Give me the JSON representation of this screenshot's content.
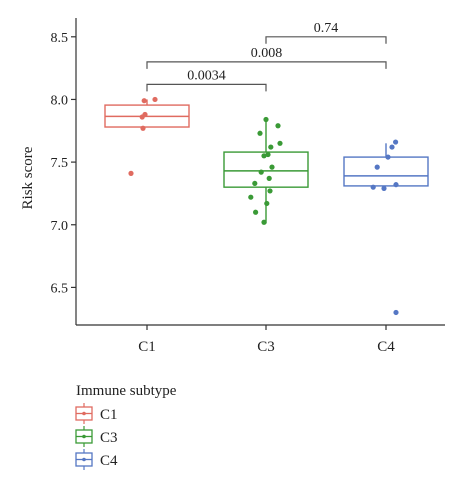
{
  "chart_data": {
    "type": "box",
    "title": "",
    "xlabel": "",
    "ylabel": "Risk score",
    "categories": [
      "C1",
      "C3",
      "C4"
    ],
    "ylim": [
      6.2,
      8.65
    ],
    "yticks": [
      "6.5",
      "7.0",
      "7.5",
      "8.0",
      "8.5"
    ],
    "grid": false,
    "legend": {
      "title": "Immune subtype",
      "placement": "bottom-left",
      "entries": [
        "C1",
        "C3",
        "C4"
      ]
    },
    "colors": {
      "C1": "#e06b60",
      "C3": "#3a9a36",
      "C4": "#5577c4",
      "bracket": "#555555",
      "axis": "#333333"
    },
    "series": [
      {
        "name": "C1",
        "box": {
          "whisker_low": 7.78,
          "q1": 7.78,
          "median": 7.865,
          "q3": 7.955,
          "whisker_high": 8.0
        },
        "points": [
          8.0,
          7.99,
          7.88,
          7.86,
          7.77,
          7.41
        ],
        "jitter": [
          0.2,
          -0.07,
          -0.05,
          -0.12,
          -0.1,
          -0.4
        ]
      },
      {
        "name": "C3",
        "box": {
          "whisker_low": 7.01,
          "q1": 7.3,
          "median": 7.43,
          "q3": 7.58,
          "whisker_high": 7.84
        },
        "points": [
          7.84,
          7.79,
          7.73,
          7.65,
          7.62,
          7.56,
          7.55,
          7.46,
          7.42,
          7.37,
          7.33,
          7.27,
          7.22,
          7.17,
          7.1,
          7.02
        ],
        "jitter": [
          0,
          0.3,
          -0.15,
          0.35,
          0.12,
          0.05,
          -0.05,
          0.15,
          -0.12,
          0.08,
          -0.28,
          0.1,
          -0.38,
          0.02,
          -0.26,
          -0.05
        ]
      },
      {
        "name": "C4",
        "box": {
          "whisker_low": 7.31,
          "q1": 7.31,
          "median": 7.39,
          "q3": 7.54,
          "whisker_high": 7.65
        },
        "points": [
          7.66,
          7.62,
          7.54,
          7.46,
          7.32,
          7.3,
          7.29,
          6.3
        ],
        "jitter": [
          0.24,
          0.15,
          0.05,
          -0.22,
          0.25,
          -0.32,
          -0.05,
          0.25
        ]
      }
    ],
    "comparisons": [
      {
        "from": "C1",
        "to": "C3",
        "label": "0.0034",
        "y": 8.12
      },
      {
        "from": "C1",
        "to": "C4",
        "label": "0.008",
        "y": 8.3
      },
      {
        "from": "C3",
        "to": "C4",
        "label": "0.74",
        "y": 8.5
      }
    ]
  }
}
